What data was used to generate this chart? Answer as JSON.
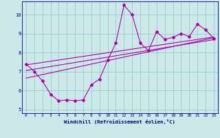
{
  "xlabel": "Windchill (Refroidissement éolien,°C)",
  "bg_color": "#cce8e8",
  "grid_color": "#99cccc",
  "line_color": "#aa00aa",
  "spine_color": "#000080",
  "xmin": -0.5,
  "xmax": 23.5,
  "ymin": 4.8,
  "ymax": 10.7,
  "yticks": [
    5,
    6,
    7,
    8,
    9,
    10
  ],
  "xticks": [
    0,
    1,
    2,
    3,
    4,
    5,
    6,
    7,
    8,
    9,
    10,
    11,
    12,
    13,
    14,
    15,
    16,
    17,
    18,
    19,
    20,
    21,
    22,
    23
  ],
  "main_x": [
    0,
    1,
    2,
    3,
    4,
    5,
    6,
    7,
    8,
    9,
    10,
    11,
    12,
    13,
    14,
    15,
    16,
    17,
    18,
    19,
    20,
    21,
    22,
    23
  ],
  "main_y": [
    7.4,
    7.0,
    6.5,
    5.8,
    5.45,
    5.5,
    5.45,
    5.5,
    6.3,
    6.6,
    7.6,
    8.5,
    10.5,
    10.0,
    8.5,
    8.1,
    9.1,
    8.7,
    8.8,
    9.0,
    8.85,
    9.5,
    9.2,
    8.75
  ],
  "trend1_x": [
    0,
    23
  ],
  "trend1_y": [
    7.35,
    8.82
  ],
  "trend2_x": [
    0,
    23
  ],
  "trend2_y": [
    7.05,
    8.68
  ],
  "trend3_x": [
    0,
    23
  ],
  "trend3_y": [
    6.65,
    8.78
  ],
  "tick_labelsize": 4.5,
  "xlabel_fontsize": 5.2,
  "marker_size": 2.0,
  "linewidth": 0.8
}
